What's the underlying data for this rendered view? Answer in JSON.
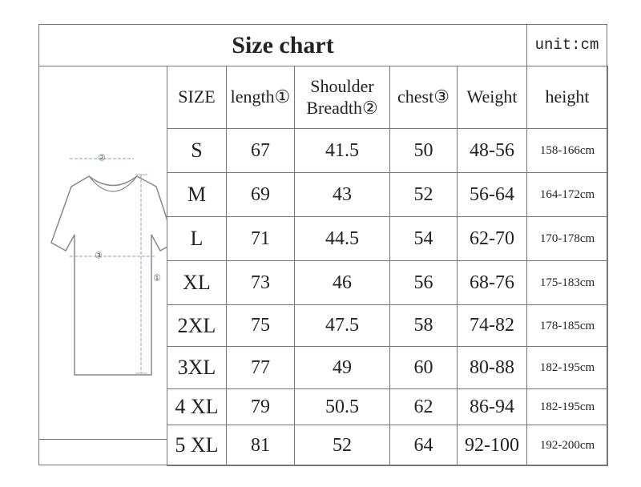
{
  "title": "Size chart",
  "unit": "unit:cm",
  "diagram": {
    "labels": [
      "②",
      "③",
      "①"
    ]
  },
  "table": {
    "headers": [
      "SIZE",
      "length①",
      "Shoulder\nBreadth②",
      "chest③",
      "Weight",
      "height"
    ],
    "rows": [
      [
        "S",
        67,
        41.5,
        50,
        "48-56",
        "158-166cm"
      ],
      [
        "M",
        69,
        43,
        52,
        "56-64",
        "164-172cm"
      ],
      [
        "L",
        71,
        44.5,
        54,
        "62-70",
        "170-178cm"
      ],
      [
        "XL",
        73,
        46,
        56,
        "68-76",
        "175-183cm"
      ],
      [
        "2XL",
        75,
        47.5,
        58,
        "74-82",
        "178-185cm"
      ],
      [
        "3XL",
        77,
        49,
        60,
        "80-88",
        "182-195cm"
      ],
      [
        "4 XL",
        79,
        50.5,
        62,
        "86-94",
        "182-195cm"
      ],
      [
        "5 XL",
        81,
        52,
        64,
        "92-100",
        "192-200cm"
      ]
    ]
  }
}
